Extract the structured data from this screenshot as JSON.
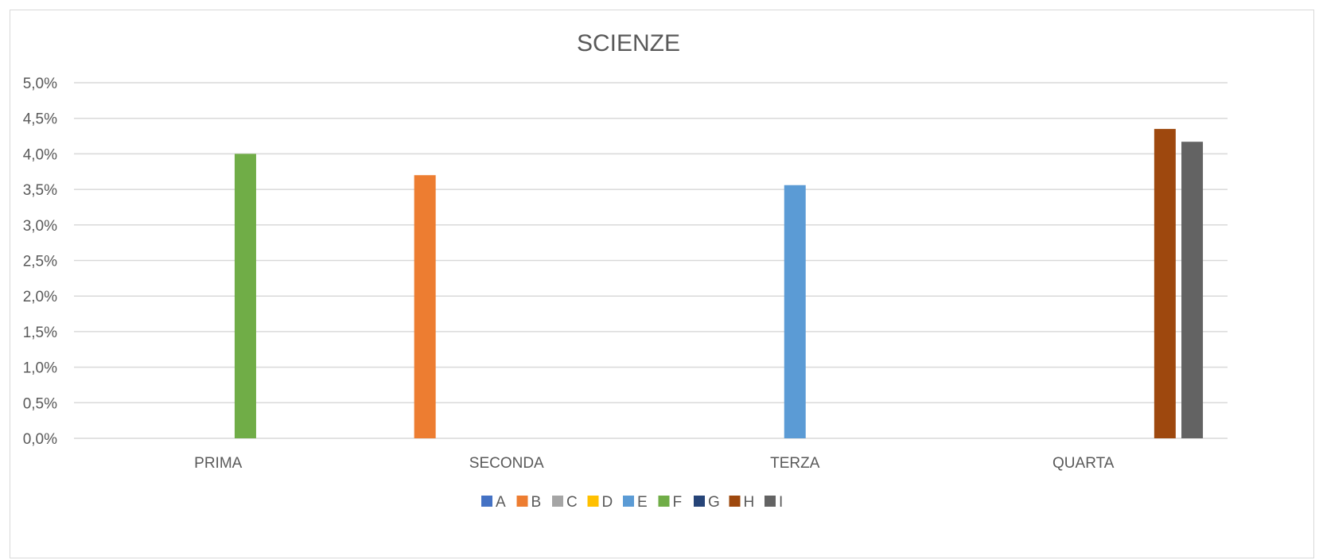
{
  "chart_data": {
    "type": "bar",
    "title": "SCIENZE",
    "categories": [
      "PRIMA",
      "SECONDA",
      "TERZA",
      "QUARTA"
    ],
    "ylim": [
      0,
      5.0
    ],
    "yticks": [
      "0,0%",
      "0,5%",
      "1,0%",
      "1,5%",
      "2,0%",
      "2,5%",
      "3,0%",
      "3,5%",
      "4,0%",
      "4,5%",
      "5,0%"
    ],
    "grid": true,
    "legend_position": "bottom",
    "series": [
      {
        "name": "A",
        "color": "#4472c4",
        "values": [
          0,
          0,
          0,
          0
        ]
      },
      {
        "name": "B",
        "color": "#ed7d31",
        "values": [
          0,
          3.7,
          0,
          0
        ]
      },
      {
        "name": "C",
        "color": "#a5a5a5",
        "values": [
          0,
          0,
          0,
          0
        ]
      },
      {
        "name": "D",
        "color": "#ffc000",
        "values": [
          0,
          0,
          0,
          0
        ]
      },
      {
        "name": "E",
        "color": "#5b9bd5",
        "values": [
          0,
          0,
          3.56,
          0
        ]
      },
      {
        "name": "F",
        "color": "#70ad47",
        "values": [
          4.0,
          0,
          0,
          0
        ]
      },
      {
        "name": "G",
        "color": "#264478",
        "values": [
          0,
          0,
          0,
          0
        ]
      },
      {
        "name": "H",
        "color": "#9e480e",
        "values": [
          0,
          0,
          0,
          4.35
        ]
      },
      {
        "name": "I",
        "color": "#636363",
        "values": [
          0,
          0,
          0,
          4.17
        ]
      }
    ]
  }
}
